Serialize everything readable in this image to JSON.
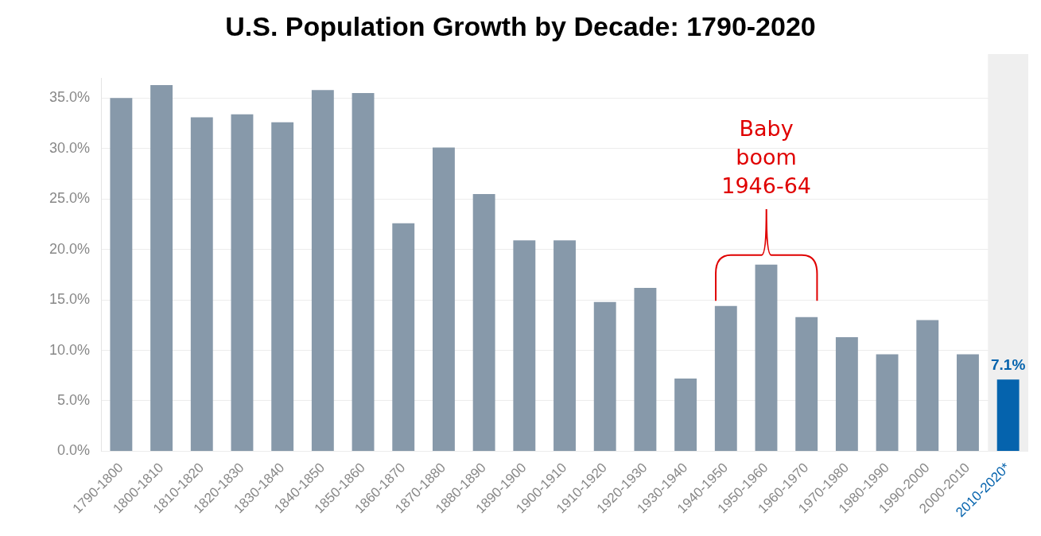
{
  "chart_data": {
    "type": "bar",
    "title": "U.S. Population Growth by Decade: 1790-2020",
    "categories": [
      "1790-1800",
      "1800-1810",
      "1810-1820",
      "1820-1830",
      "1830-1840",
      "1840-1850",
      "1850-1860",
      "1860-1870",
      "1870-1880",
      "1880-1890",
      "1890-1900",
      "1900-1910",
      "1910-1920",
      "1920-1930",
      "1930-1940",
      "1940-1950",
      "1950-1960",
      "1960-1970",
      "1970-1980",
      "1980-1990",
      "1990-2000",
      "2000-2010",
      "2010-2020*"
    ],
    "values": [
      35.0,
      36.3,
      33.1,
      33.4,
      32.6,
      35.8,
      35.5,
      22.6,
      30.1,
      25.5,
      20.9,
      20.9,
      14.8,
      16.2,
      7.2,
      14.4,
      18.5,
      13.3,
      11.3,
      9.6,
      13.0,
      9.6,
      7.1
    ],
    "colors": [
      "#8799aa",
      "#8799aa",
      "#8799aa",
      "#8799aa",
      "#8799aa",
      "#8799aa",
      "#8799aa",
      "#8799aa",
      "#8799aa",
      "#8799aa",
      "#8799aa",
      "#8799aa",
      "#8799aa",
      "#8799aa",
      "#8799aa",
      "#8799aa",
      "#8799aa",
      "#8799aa",
      "#8799aa",
      "#8799aa",
      "#8799aa",
      "#8799aa",
      "#0563ad"
    ],
    "value_labels": [
      null,
      null,
      null,
      null,
      null,
      null,
      null,
      null,
      null,
      null,
      null,
      null,
      null,
      null,
      null,
      null,
      null,
      null,
      null,
      null,
      null,
      null,
      "7.1%"
    ],
    "ylim": [
      0,
      37
    ],
    "yticks": [
      {
        "value": 0,
        "label": "0.0%"
      },
      {
        "value": 5,
        "label": "5.0%"
      },
      {
        "value": 10,
        "label": "10.0%"
      },
      {
        "value": 15,
        "label": "15.0%"
      },
      {
        "value": 20,
        "label": "20.0%"
      },
      {
        "value": 25,
        "label": "25.0%"
      },
      {
        "value": 30,
        "label": "30.0%"
      },
      {
        "value": 35,
        "label": "35.0%"
      }
    ],
    "grid": "y",
    "legend": false,
    "bands": [
      {
        "axis": "x",
        "from": "2010-2020*",
        "to": "2010-2020*",
        "color": "#efefef"
      }
    ],
    "annotations": [
      "Baby boom 1946-64"
    ]
  }
}
